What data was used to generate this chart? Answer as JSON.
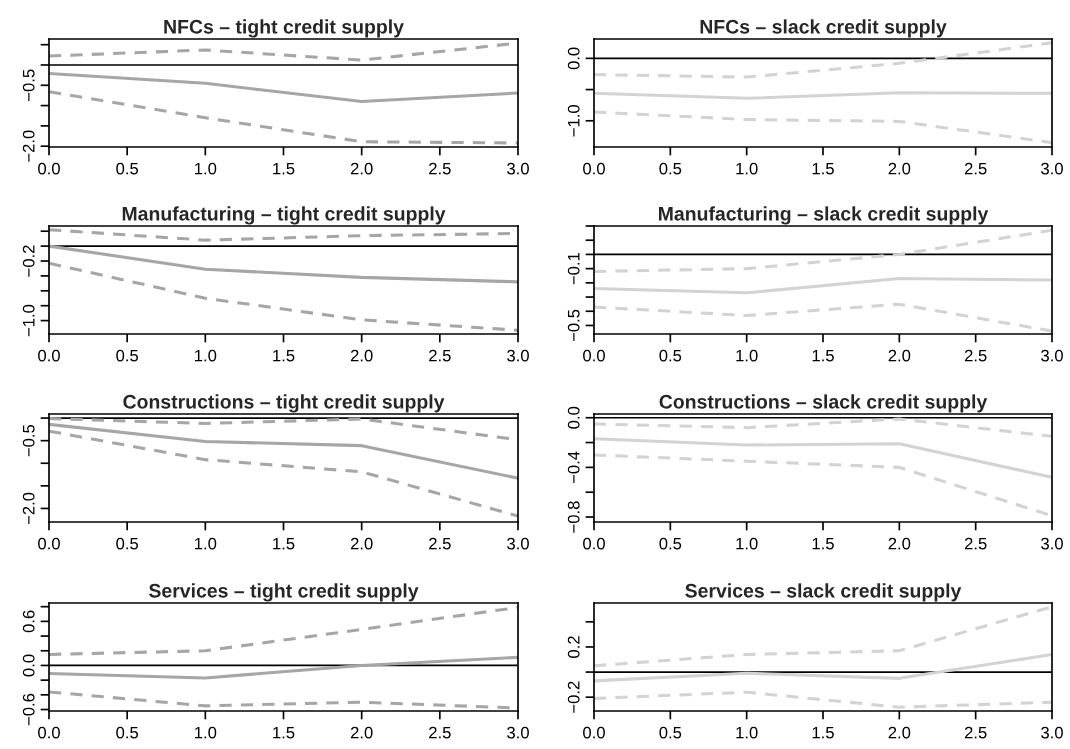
{
  "chart_data": [
    {
      "type": "line",
      "title": "NFCs – tight credit supply",
      "x": [
        0,
        1,
        2,
        3
      ],
      "xlim": [
        0,
        3
      ],
      "xticks": [
        {
          "value": 0,
          "label": "0.0"
        },
        {
          "value": 0.5,
          "label": "0.5"
        },
        {
          "value": 1,
          "label": "1.0"
        },
        {
          "value": 1.5,
          "label": "1.5"
        },
        {
          "value": 2,
          "label": "2.0"
        },
        {
          "value": 2.5,
          "label": "2.5"
        },
        {
          "value": 3,
          "label": "3.0"
        }
      ],
      "ylim": [
        -2.02,
        0.64
      ],
      "yticks": [
        {
          "value": 0.5,
          "label": null
        },
        {
          "value": 0,
          "label": null
        },
        {
          "value": -0.5,
          "label": "−0.5"
        },
        {
          "value": -1,
          "label": null
        },
        {
          "value": -1.5,
          "label": null
        },
        {
          "value": -2,
          "label": "−2.0"
        }
      ],
      "ref_lines": [
        {
          "axis": "y",
          "value": 0,
          "color": "#000000"
        }
      ],
      "series": [
        {
          "color": "#a6a6a6",
          "line_style": "solid",
          "values": [
            -0.21,
            -0.45,
            -0.9,
            -0.69
          ]
        },
        {
          "color": "#a6a6a6",
          "line_style": "dashed",
          "values": [
            0.22,
            0.37,
            0.12,
            0.54
          ]
        },
        {
          "color": "#a6a6a6",
          "line_style": "dashed",
          "values": [
            -0.66,
            -1.3,
            -1.89,
            -1.92
          ]
        }
      ]
    },
    {
      "type": "line",
      "title": "NFCs – slack credit supply",
      "x": [
        0,
        1,
        2,
        3
      ],
      "xlim": [
        0,
        3
      ],
      "xticks": [
        {
          "value": 0,
          "label": "0.0"
        },
        {
          "value": 0.5,
          "label": "0.5"
        },
        {
          "value": 1,
          "label": "1.0"
        },
        {
          "value": 1.5,
          "label": "1.5"
        },
        {
          "value": 2,
          "label": "2.0"
        },
        {
          "value": 2.5,
          "label": "2.5"
        },
        {
          "value": 3,
          "label": "3.0"
        }
      ],
      "ylim": [
        -1.42,
        0.31
      ],
      "yticks": [
        {
          "value": 0,
          "label": "0.0"
        },
        {
          "value": -0.5,
          "label": null
        },
        {
          "value": -1,
          "label": "−1.0"
        }
      ],
      "ref_lines": [
        {
          "axis": "y",
          "value": 0,
          "color": "#000000"
        }
      ],
      "series": [
        {
          "color": "#d3d3d3",
          "line_style": "solid",
          "values": [
            -0.56,
            -0.64,
            -0.55,
            -0.56
          ]
        },
        {
          "color": "#d3d3d3",
          "line_style": "dashed",
          "values": [
            -0.26,
            -0.3,
            -0.08,
            0.25
          ]
        },
        {
          "color": "#d3d3d3",
          "line_style": "dashed",
          "values": [
            -0.86,
            -0.98,
            -1.01,
            -1.35
          ]
        }
      ]
    },
    {
      "type": "line",
      "title": "Manufacturing – tight credit supply",
      "x": [
        0,
        1,
        2,
        3
      ],
      "xlim": [
        0,
        3
      ],
      "xticks": [
        {
          "value": 0,
          "label": "0.0"
        },
        {
          "value": 0.5,
          "label": "0.5"
        },
        {
          "value": 1,
          "label": "1.0"
        },
        {
          "value": 1.5,
          "label": "1.5"
        },
        {
          "value": 2,
          "label": "2.0"
        },
        {
          "value": 2.5,
          "label": "2.5"
        },
        {
          "value": 3,
          "label": "3.0"
        }
      ],
      "ylim": [
        -1.18,
        0.27
      ],
      "yticks": [
        {
          "value": 0.2,
          "label": null
        },
        {
          "value": 0,
          "label": null
        },
        {
          "value": -0.2,
          "label": "−0.2"
        },
        {
          "value": -0.4,
          "label": null
        },
        {
          "value": -0.6,
          "label": null
        },
        {
          "value": -0.8,
          "label": null
        },
        {
          "value": -1,
          "label": "−1.0"
        }
      ],
      "ref_lines": [
        {
          "axis": "y",
          "value": 0,
          "color": "#000000"
        }
      ],
      "series": [
        {
          "color": "#a6a6a6",
          "line_style": "solid",
          "values": [
            0.0,
            -0.31,
            -0.42,
            -0.48
          ]
        },
        {
          "color": "#a6a6a6",
          "line_style": "dashed",
          "values": [
            0.22,
            0.08,
            0.14,
            0.17
          ]
        },
        {
          "color": "#a6a6a6",
          "line_style": "dashed",
          "values": [
            -0.23,
            -0.7,
            -0.99,
            -1.13
          ]
        }
      ]
    },
    {
      "type": "line",
      "title": "Manufacturing – slack credit supply",
      "x": [
        0,
        1,
        2,
        3
      ],
      "xlim": [
        0,
        3
      ],
      "xticks": [
        {
          "value": 0,
          "label": "0.0"
        },
        {
          "value": 0.5,
          "label": "0.5"
        },
        {
          "value": 1,
          "label": "1.0"
        },
        {
          "value": 1.5,
          "label": "1.5"
        },
        {
          "value": 2,
          "label": "2.0"
        },
        {
          "value": 2.5,
          "label": "2.5"
        },
        {
          "value": 3,
          "label": "3.0"
        }
      ],
      "ylim": [
        -0.56,
        0.2
      ],
      "yticks": [
        {
          "value": 0.2,
          "label": null
        },
        {
          "value": 0.1,
          "label": null
        },
        {
          "value": 0,
          "label": null
        },
        {
          "value": -0.1,
          "label": "−0.1"
        },
        {
          "value": -0.2,
          "label": null
        },
        {
          "value": -0.3,
          "label": null
        },
        {
          "value": -0.4,
          "label": null
        },
        {
          "value": -0.5,
          "label": "−0.5"
        }
      ],
      "ref_lines": [
        {
          "axis": "y",
          "value": 0,
          "color": "#000000"
        }
      ],
      "series": [
        {
          "color": "#d3d3d3",
          "line_style": "solid",
          "values": [
            -0.24,
            -0.27,
            -0.17,
            -0.18
          ]
        },
        {
          "color": "#d3d3d3",
          "line_style": "dashed",
          "values": [
            -0.12,
            -0.1,
            0.0,
            0.17
          ]
        },
        {
          "color": "#d3d3d3",
          "line_style": "dashed",
          "values": [
            -0.37,
            -0.43,
            -0.35,
            -0.54
          ]
        }
      ]
    },
    {
      "type": "line",
      "title": "Constructions – tight credit supply",
      "x": [
        0,
        1,
        2,
        3
      ],
      "xlim": [
        0,
        3
      ],
      "xticks": [
        {
          "value": 0,
          "label": "0.0"
        },
        {
          "value": 0.5,
          "label": "0.5"
        },
        {
          "value": 1,
          "label": "1.0"
        },
        {
          "value": 1.5,
          "label": "1.5"
        },
        {
          "value": 2,
          "label": "2.0"
        },
        {
          "value": 2.5,
          "label": "2.5"
        },
        {
          "value": 3,
          "label": "3.0"
        }
      ],
      "ylim": [
        -2.3,
        0.09
      ],
      "yticks": [
        {
          "value": 0,
          "label": null
        },
        {
          "value": -0.5,
          "label": "−0.5"
        },
        {
          "value": -1,
          "label": null
        },
        {
          "value": -1.5,
          "label": null
        },
        {
          "value": -2,
          "label": "−2.0"
        }
      ],
      "ref_lines": [
        {
          "axis": "y",
          "value": 0,
          "color": "#000000"
        }
      ],
      "series": [
        {
          "color": "#a6a6a6",
          "line_style": "solid",
          "values": [
            -0.14,
            -0.52,
            -0.61,
            -1.33
          ]
        },
        {
          "color": "#a6a6a6",
          "line_style": "dashed",
          "values": [
            -0.01,
            -0.12,
            -0.02,
            -0.48
          ]
        },
        {
          "color": "#a6a6a6",
          "line_style": "dashed",
          "values": [
            -0.29,
            -0.92,
            -1.19,
            -2.17
          ]
        }
      ]
    },
    {
      "type": "line",
      "title": "Constructions – slack credit supply",
      "x": [
        0,
        1,
        2,
        3
      ],
      "xlim": [
        0,
        3
      ],
      "xticks": [
        {
          "value": 0,
          "label": "0.0"
        },
        {
          "value": 0.5,
          "label": "0.5"
        },
        {
          "value": 1,
          "label": "1.0"
        },
        {
          "value": 1.5,
          "label": "1.5"
        },
        {
          "value": 2,
          "label": "2.0"
        },
        {
          "value": 2.5,
          "label": "2.5"
        },
        {
          "value": 3,
          "label": "3.0"
        }
      ],
      "ylim": [
        -0.84,
        0.03
      ],
      "yticks": [
        {
          "value": 0,
          "label": "0.0"
        },
        {
          "value": -0.2,
          "label": null
        },
        {
          "value": -0.4,
          "label": "−0.4"
        },
        {
          "value": -0.6,
          "label": null
        },
        {
          "value": -0.8,
          "label": "−0.8"
        }
      ],
      "ref_lines": [
        {
          "axis": "y",
          "value": 0,
          "color": "#000000"
        }
      ],
      "series": [
        {
          "color": "#d3d3d3",
          "line_style": "solid",
          "values": [
            -0.17,
            -0.22,
            -0.21,
            -0.48
          ]
        },
        {
          "color": "#d3d3d3",
          "line_style": "dashed",
          "values": [
            -0.05,
            -0.08,
            -0.01,
            -0.15
          ]
        },
        {
          "color": "#d3d3d3",
          "line_style": "dashed",
          "values": [
            -0.3,
            -0.35,
            -0.4,
            -0.79
          ]
        }
      ]
    },
    {
      "type": "line",
      "title": "Services – tight credit supply",
      "x": [
        0,
        1,
        2,
        3
      ],
      "xlim": [
        0,
        3
      ],
      "xticks": [
        {
          "value": 0,
          "label": "0.0"
        },
        {
          "value": 0.5,
          "label": "0.5"
        },
        {
          "value": 1,
          "label": "1.0"
        },
        {
          "value": 1.5,
          "label": "1.5"
        },
        {
          "value": 2,
          "label": "2.0"
        },
        {
          "value": 2.5,
          "label": "2.5"
        },
        {
          "value": 3,
          "label": "3.0"
        }
      ],
      "ylim": [
        -0.62,
        0.85
      ],
      "yticks": [
        {
          "value": 0.8,
          "label": null
        },
        {
          "value": 0.6,
          "label": "0.6"
        },
        {
          "value": 0.4,
          "label": null
        },
        {
          "value": 0.2,
          "label": null
        },
        {
          "value": 0,
          "label": "0.0"
        },
        {
          "value": -0.2,
          "label": null
        },
        {
          "value": -0.4,
          "label": null
        },
        {
          "value": -0.6,
          "label": "−0.6"
        }
      ],
      "ref_lines": [
        {
          "axis": "y",
          "value": 0,
          "color": "#000000"
        }
      ],
      "series": [
        {
          "color": "#a6a6a6",
          "line_style": "solid",
          "values": [
            -0.11,
            -0.17,
            0.0,
            0.11
          ]
        },
        {
          "color": "#a6a6a6",
          "line_style": "dashed",
          "values": [
            0.15,
            0.2,
            0.49,
            0.79
          ]
        },
        {
          "color": "#a6a6a6",
          "line_style": "dashed",
          "values": [
            -0.36,
            -0.55,
            -0.5,
            -0.58
          ]
        }
      ]
    },
    {
      "type": "line",
      "title": "Services – slack credit supply",
      "x": [
        0,
        1,
        2,
        3
      ],
      "xlim": [
        0,
        3
      ],
      "xticks": [
        {
          "value": 0,
          "label": "0.0"
        },
        {
          "value": 0.5,
          "label": "0.5"
        },
        {
          "value": 1,
          "label": "1.0"
        },
        {
          "value": 1.5,
          "label": "1.5"
        },
        {
          "value": 2,
          "label": "2.0"
        },
        {
          "value": 2.5,
          "label": "2.5"
        },
        {
          "value": 3,
          "label": "3.0"
        }
      ],
      "ylim": [
        -0.31,
        0.55
      ],
      "yticks": [
        {
          "value": 0.4,
          "label": null
        },
        {
          "value": 0.2,
          "label": "0.2"
        },
        {
          "value": 0,
          "label": null
        },
        {
          "value": -0.2,
          "label": "−0.2"
        }
      ],
      "ref_lines": [
        {
          "axis": "y",
          "value": 0,
          "color": "#000000"
        }
      ],
      "series": [
        {
          "color": "#d3d3d3",
          "line_style": "solid",
          "values": [
            -0.07,
            -0.01,
            -0.05,
            0.14
          ]
        },
        {
          "color": "#d3d3d3",
          "line_style": "dashed",
          "values": [
            0.05,
            0.14,
            0.17,
            0.52
          ]
        },
        {
          "color": "#d3d3d3",
          "line_style": "dashed",
          "values": [
            -0.21,
            -0.16,
            -0.28,
            -0.24
          ]
        }
      ]
    }
  ]
}
